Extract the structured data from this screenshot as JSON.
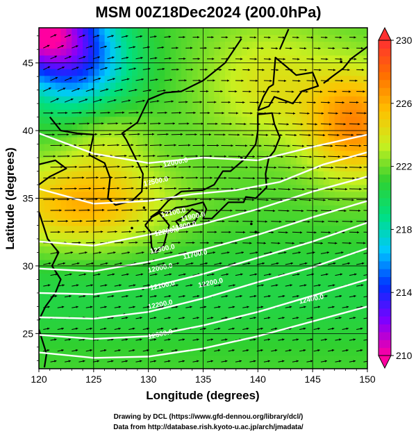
{
  "chart_data": {
    "type": "heatmap",
    "title": "MSM 00Z18Dec2024 (200.0hPa)",
    "xlabel": "Longitude (degrees)",
    "ylabel": "Latitude  (degrees)",
    "xlim": [
      120,
      150
    ],
    "ylim": [
      22.4,
      47.6
    ],
    "x_ticks": [
      "120",
      "125",
      "130",
      "135",
      "140",
      "145",
      "150"
    ],
    "y_ticks": [
      "25",
      "30",
      "35",
      "40",
      "45"
    ],
    "colorbar": {
      "range": [
        210,
        230
      ],
      "ticks": [
        "210",
        "214",
        "218",
        "222",
        "226",
        "230"
      ],
      "colors": [
        "#ff00a0",
        "#8000ff",
        "#0030ff",
        "#00c8ff",
        "#00e080",
        "#30d030",
        "#c8f020",
        "#ffc000",
        "#ff7000",
        "#ff3030"
      ]
    },
    "overlays": {
      "vectors": "wind arrows",
      "contours": "geopotential height (white)",
      "contour_labels": [
        "12000.0",
        "12100.0",
        "12200.0",
        "12300.0",
        "12000.0",
        "12100.0",
        "12200.0",
        "12300.0",
        "12400.0",
        "12500.0",
        "11900.0",
        "11800.0",
        "11700.0",
        "12200.0"
      ]
    }
  },
  "credits": {
    "line1": "Drawing by DCL (https://www.gfd-dennou.org/library/dcl/)",
    "line2": "Data from http://database.rish.kyoto-u.ac.jp/arch/jmadata/"
  }
}
